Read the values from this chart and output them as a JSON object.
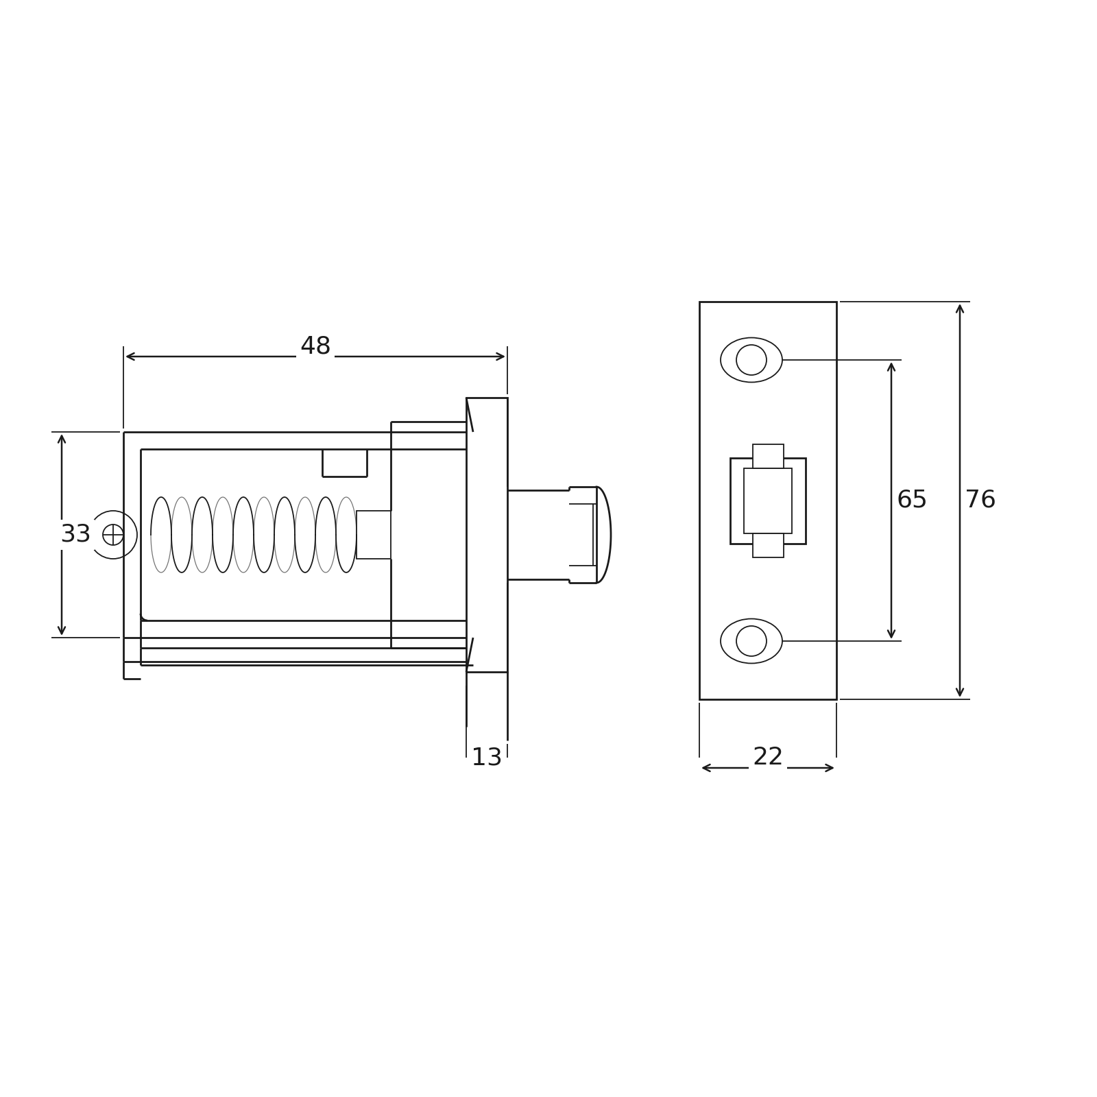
{
  "bg_color": "#ffffff",
  "line_color": "#1a1a1a",
  "lw_main": 2.0,
  "lw_thin": 1.3,
  "dim_48": "48",
  "dim_33": "33",
  "dim_13": "13",
  "dim_22": "22",
  "dim_65": "65",
  "dim_76": "76",
  "font_size_dim": 26,
  "arrow_scale": 18
}
